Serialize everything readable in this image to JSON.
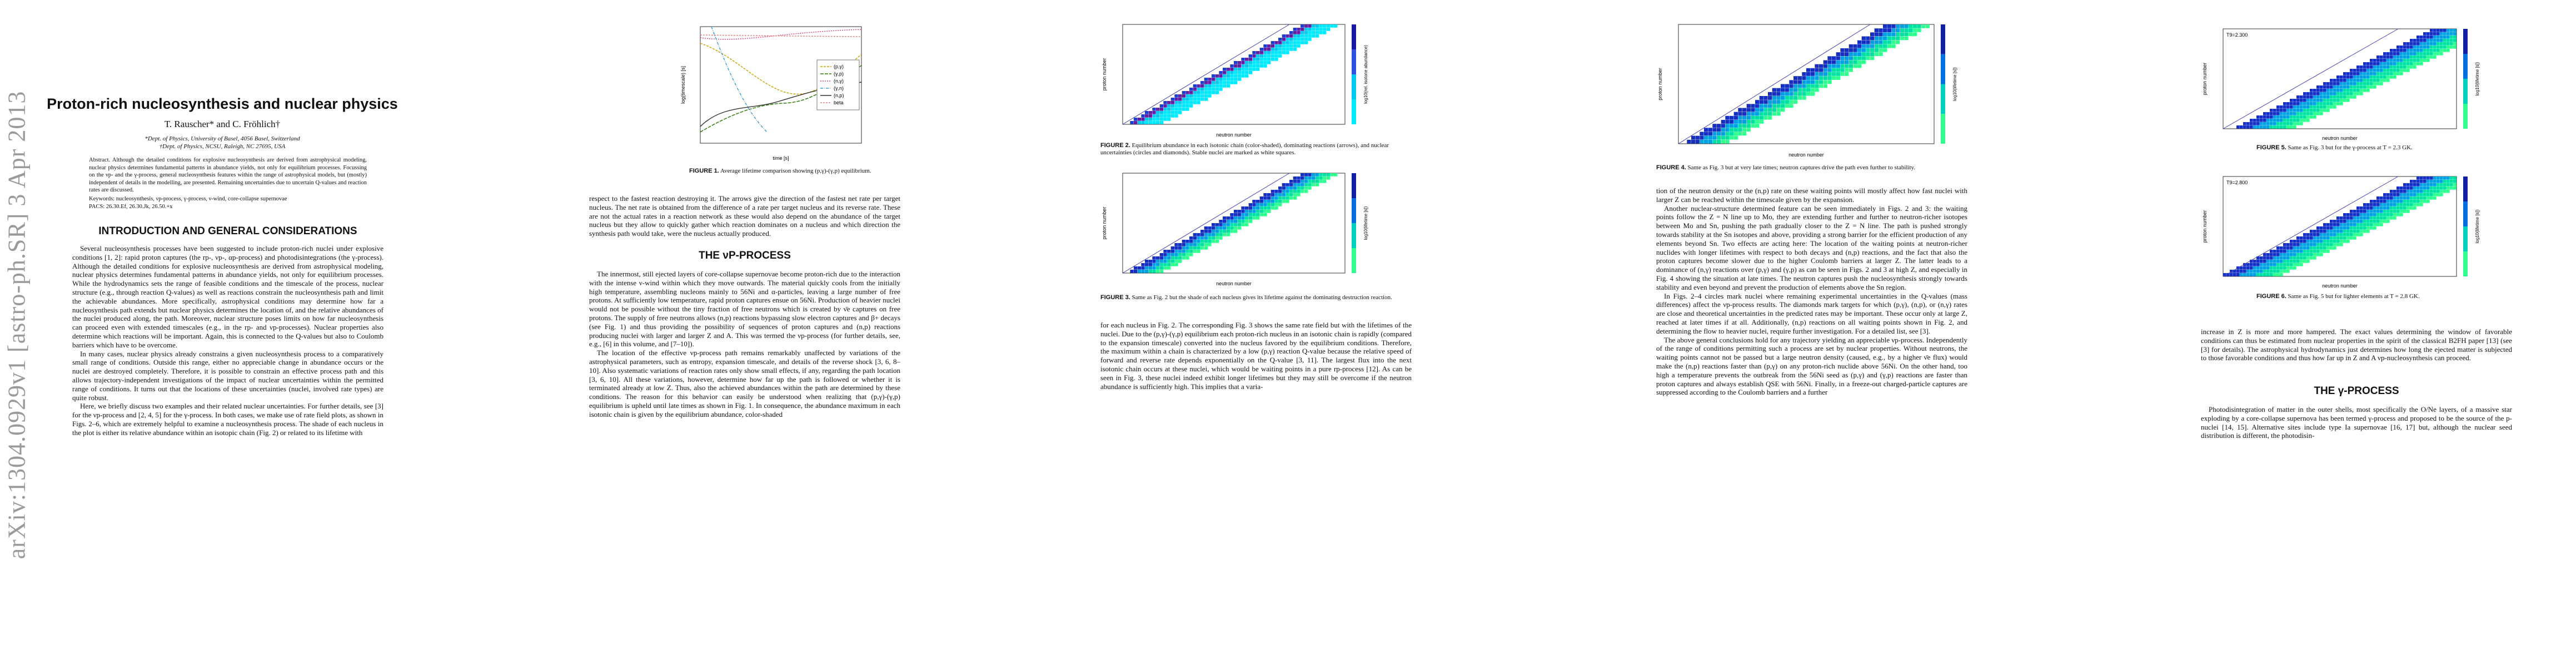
{
  "sidebar": {
    "arxiv_id": "arXiv:1304.0929v1  [astro-ph.SR]  3 Apr 2013"
  },
  "header": {
    "title": "Proton-rich nucleosynthesis and nuclear physics",
    "authors": "T. Rauscher* and C. Fröhlich†",
    "aff1": "*Dept. of Physics, University of Basel, 4056 Basel, Switzerland",
    "aff2": "†Dept. of Physics, NCSU, Raleigh, NC 27695, USA"
  },
  "abstract": {
    "text": "Abstract. Although the detailed conditions for explosive nucleosynthesis are derived from astrophysical modeling, nuclear physics determines fundamental patterns in abundance yields, not only for equilibrium processes. Focussing on the νp- and the γ-process, general nucleosynthesis features within the range of astrophysical models, but (mostly) independent of details in the modelling, are presented. Remaining uncertainties due to uncertain Q-values and reaction rates are discussed.",
    "keywords": "Keywords: nucleosynthesis, νp-process, γ-process, ν-wind, core-collapse supernovae",
    "pacs": "PACS: 26.30.Ef, 26.30.Jk, 26.50.+x"
  },
  "sections": {
    "intro": "INTRODUCTION AND GENERAL CONSIDERATIONS",
    "vp": "THE νP-PROCESS",
    "gamma": "THE γ-PROCESS"
  },
  "text": {
    "p1_1": "Several nucleosynthesis processes have been suggested to include proton-rich nuclei under explosive conditions [1, 2]: rapid proton captures (the rp-, νp-, αp-process) and photodisintegrations (the γ-process). Although the detailed conditions for explosive nucleosynthesis are derived from astrophysical modeling, nuclear physics determines fundamental patterns in abundance yields, not only for equilibrium processes. While the hydrodynamics sets the range of feasible conditions and the timescale of the process, nuclear structure (e.g., through reaction Q-values) as well as reactions constrain the nucleosynthesis path and limit the achievable abundances. More specifically, astrophysical conditions may determine how far a nucleosynthesis path extends but nuclear physics determines the location of, and the relative abundances of the nuclei produced along, the path. Moreover, nuclear structure poses limits on how far nucleosynthesis can proceed even with extended timescales (e.g., in the rp- and νp-processes). Nuclear properties also determine which reactions will be important. Again, this is connected to the Q-values but also to Coulomb barriers which have to be overcome.",
    "p1_2": "In many cases, nuclear physics already constrains a given nucleosynthesis process to a comparatively small range of conditions. Outside this range, either no appreciable change in abundance occurs or the nuclei are destroyed completely. Therefore, it is possible to constrain an effective process path and this allows trajectory-independent investigations of the impact of nuclear uncertainties within the permitted range of conditions. It turns out that the locations of these uncertainties (nuclei, involved rate types) are quite robust.",
    "p1_3": "Here, we briefly discuss two examples and their related nuclear uncertainties. For further details, see [3] for the νp-process and [2, 4, 5] for the γ-process. In both cases, we make use of rate field plots, as shown in Figs. 2–6, which are extremely helpful to examine a nucleosynthesis process. The shade of each nucleus in the plot is either its relative abundance within an isotopic chain (Fig. 2) or related to its lifetime with",
    "p2_1": "respect to the fastest reaction destroying it. The arrows give the direction of the fastest net rate per target nucleus. The net rate is obtained from the difference of a rate per target nucleus and its reverse rate. These are not the actual rates in a reaction network as these would also depend on the abundance of the target nucleus but they allow to quickly gather which reaction dominates on a nucleus and which direction the synthesis path would take, were the nucleus actually produced.",
    "p2_2": "The innermost, still ejected layers of core-collapse supernovae become proton-rich due to the interaction with the intense ν-wind within which they move outwards. The material quickly cools from the initially high temperature, assembling nucleons mainly to 56Ni and α-particles, leaving a large number of free protons. At sufficiently low temperature, rapid proton captures ensue on 56Ni. Production of heavier nuclei would not be possible without the tiny fraction of free neutrons which is created by ν̄e captures on free protons. The supply of free neutrons allows (n,p) reactions bypassing slow electron captures and β+ decays (see Fig. 1) and thus providing the possibility of sequences of proton captures and (n,p) reactions producing nuclei with larger and larger Z and A. This was termed the νp-process (for further details, see, e.g., [6] in this volume, and [7–10]).",
    "p2_3": "The location of the effective νp-process path remains remarkably unaffected by variations of the astrophysical parameters, such as entropy, expansion timescale, and details of the reverse shock [3, 6, 8–10]. Also systematic variations of reaction rates only show small effects, if any, regarding the path location [3, 6, 10]. All these variations, however, determine how far up the path is followed or whether it is terminated already at low Z. Thus, also the achieved abundances within the path are determined by these conditions. The reason for this behavior can easily be understood when realizing that (p,γ)-(γ,p) equilibrium is upheld until late times as shown in Fig. 1. In consequence, the abundance maximum in each isotonic chain is given by the equilibrium abundance, color-shaded",
    "p3_1": "for each nucleus in Fig. 2. The corresponding Fig. 3 shows the same rate field but with the lifetimes of the nuclei. Due to the (p,γ)-(γ,p) equilibrium each proton-rich nucleus in an isotonic chain is rapidly (compared to the expansion timescale) converted into the nucleus favored by the equilibrium conditions. Therefore, the maximum within a chain is characterized by a low (p,γ) reaction Q-value because the relative speed of forward and reverse rate depends exponentially on the Q-value [3, 11]. The largest flux into the next isotonic chain occurs at these nuclei, which would be waiting points in a pure rp-process [12]. As can be seen in Fig. 3, these nuclei indeed exhibit longer lifetimes but they may still be overcome if the neutron abundance is sufficiently high. This implies that a varia-",
    "p4_1": "tion of the neutron density or the (n,p) rate on these waiting points will mostly affect how fast nuclei with larger Z can be reached within the timescale given by the expansion.",
    "p4_2": "Another nuclear-structure determined feature can be seen immediately in Figs. 2 and 3: the waiting points follow the Z = N line up to Mo, they are extending further and further to neutron-richer isotopes between Mo and Sn, pushing the path gradually closer to the Z = N line. The path is pushed strongly towards stability at the Sn isotopes and above, providing a strong barrier for the efficient production of any elements beyond Sn. Two effects are acting here: The location of the waiting points at neutron-richer nuclides with longer lifetimes with respect to both decays and (n,p) reactions, and the fact that also the proton captures become slower due to the higher Coulomb barriers at larger Z. The latter leads to a dominance of (n,γ) reactions over (p,γ) and (γ,p) as can be seen in Figs. 2 and 3 at high Z, and especially in Fig. 4 showing the situation at late times. The neutron captures push the nucleosynthesis strongly towards stability and even beyond and prevent the production of elements above the Sn region.",
    "p4_3": "In Figs. 2–4 circles mark nuclei where remaining experimental uncertainties in the Q-values (mass differences) affect the νp-process results. The diamonds mark targets for which (p,γ), (n,p), or (n,γ) rates are close and theoretical uncertainties in the predicted rates may be important. These occur only at large Z, reached at later times if at all. Additionally, (n,p) reactions on all waiting points shown in Fig. 2, and determining the flow to heavier nuclei, require further investigation. For a detailed list, see [3].",
    "p4_4": "The above general conclusions hold for any trajectory yielding an appreciable νp-process. Independently of the range of conditions permitting such a process are set by nuclear properties. Without neutrons, the waiting points cannot not be passed but a large neutron density (caused, e.g., by a higher ν̄e flux) would make the (n,p) reactions faster than (p,γ) on any proton-rich nuclide above 56Ni. On the other hand, too high a temperature prevents the outbreak from the 56Ni seed as (p,γ) and (γ,p) reactions are faster than proton captures and always establish QSE with 56Ni. Finally, in a freeze-out charged-particle captures are suppressed according to the Coulomb barriers and a further",
    "p5_1": "increase in Z is more and more hampered. The exact values determining the window of favorable conditions can thus be estimated from nuclear properties in the spirit of the classical B2FH paper [13] (see [3] for details). The astrophysical hydrodynamics just determines how long the ejected matter is subjected to those favorable conditions and thus how far up in Z and A νp-nucleosynthesis can proceed.",
    "p5_2": "Photodisintegration of matter in the outer shells, most specifically the O/Ne layers, of a massive star exploding by a core-collapse supernova has been termed γ-process and proposed to be the source of the p-nuclei [14, 15]. Alternative sites include type Ia supernovae [16, 17] but, although the nuclear seed distribution is different, the photodisin-"
  },
  "figures": {
    "fig1": {
      "caption_label": "FIGURE 1.",
      "caption": "Average lifetime comparison showing (p,γ)-(γ,p) equilibrium.",
      "ylabel": "log(timescale) [s]",
      "xlabel": "time [s]",
      "legend": [
        "(p,γ)",
        "(γ,p)",
        "(n,γ)",
        "(γ,n)",
        "(n,p)",
        "beta"
      ]
    },
    "fig2": {
      "caption_label": "FIGURE 2.",
      "caption": "Equilibrium abundance in each isotonic chain (color-shaded), dominating reactions (arrows), and nuclear uncertainties (circles and diamonds). Stable nuclei are marked as white squares.",
      "xlabel": "neutron number",
      "ylabel": "proton number",
      "cbar": "log10(rel. isotone abundance)"
    },
    "fig3": {
      "caption_label": "FIGURE 3.",
      "caption": "Same as Fig. 2 but the shade of each nucleus gives its lifetime against the dominating destruction reaction.",
      "xlabel": "neutron number",
      "ylabel": "proton number",
      "cbar": "log10(lifetime [s])"
    },
    "fig4": {
      "caption_label": "FIGURE 4.",
      "caption": "Same as Fig. 3 but at very late times; neutron captures drive the path even further to stability.",
      "xlabel": "neutron number",
      "ylabel": "proton number",
      "cbar": "log10(lifetime [s])"
    },
    "fig5": {
      "caption_label": "FIGURE 5.",
      "caption": "Same as Fig. 3 but for the γ-process at T = 2.3 GK.",
      "label": "T9=2.300",
      "xlabel": "neutron number",
      "ylabel": "proton number",
      "cbar": "log10(lifetime [s])"
    },
    "fig6": {
      "caption_label": "FIGURE 6.",
      "caption": "Same as Fig. 5 but for lighter elements at T = 2.8 GK.",
      "label": "T9=2.800",
      "xlabel": "neutron number",
      "ylabel": "proton number",
      "cbar": "log10(lifetime [s])"
    }
  },
  "colors": {
    "cmap_low": "#00e5b0",
    "cmap_mid": "#00e0ff",
    "cmap_high": "#1020c0"
  }
}
